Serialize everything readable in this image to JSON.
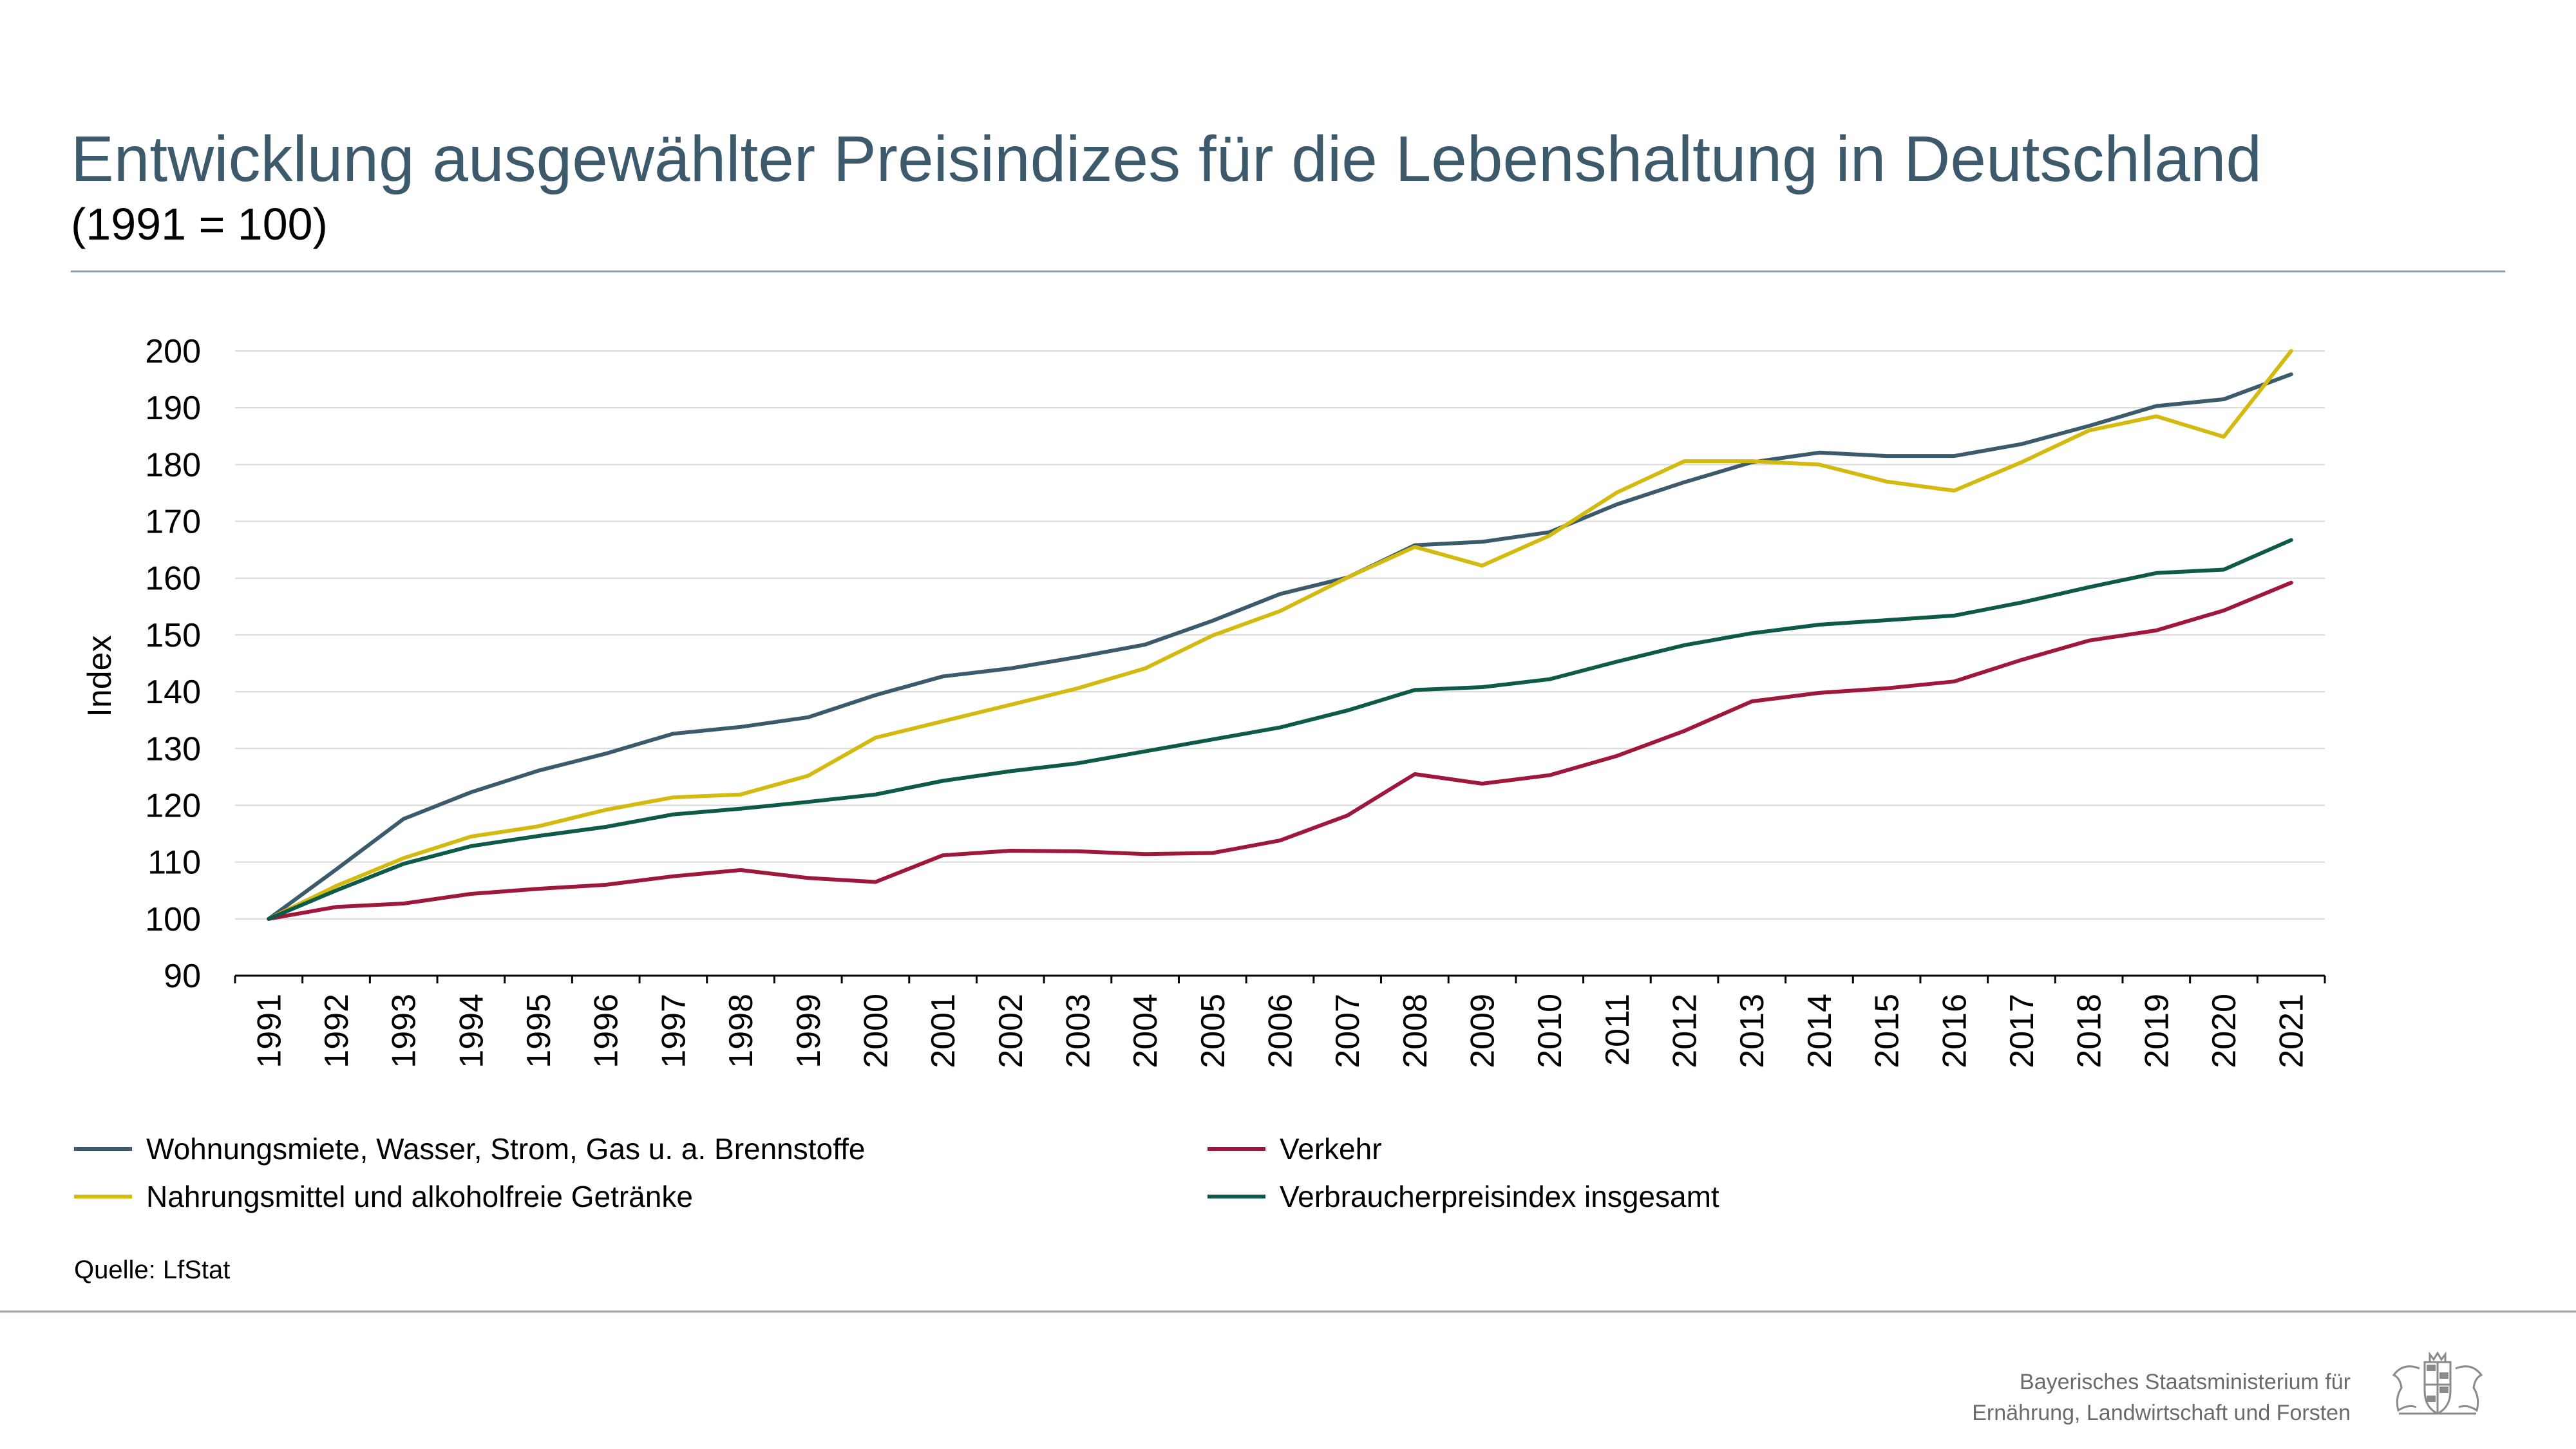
{
  "header": {
    "title": "Entwicklung ausgewählter Preisindizes für die Lebenshaltung in Deutschland",
    "subtitle": "(1991 = 100)"
  },
  "chart_data": {
    "type": "line",
    "ylabel": "Index",
    "ylim": [
      90,
      200
    ],
    "yticks": [
      90,
      100,
      110,
      120,
      130,
      140,
      150,
      160,
      170,
      180,
      190,
      200
    ],
    "grid": true,
    "legend_position": "bottom",
    "categories": [
      "1991",
      "1992",
      "1993",
      "1994",
      "1995",
      "1996",
      "1997",
      "1998",
      "1999",
      "2000",
      "2001",
      "2002",
      "2003",
      "2004",
      "2005",
      "2006",
      "2007",
      "2008",
      "2009",
      "2010",
      "2011",
      "2012",
      "2013",
      "2014",
      "2015",
      "2016",
      "2017",
      "2018",
      "2019",
      "2020",
      "2021"
    ],
    "series": [
      {
        "name": "Wohnungsmiete, Wasser, Strom, Gas u. a. Brennstoffe",
        "color": "#3d5a6c",
        "values": [
          100,
          108.7,
          117.6,
          122.3,
          126.1,
          129.1,
          132.6,
          133.8,
          135.5,
          139.4,
          142.7,
          144.1,
          146.1,
          148.3,
          152.5,
          157.2,
          160.1,
          165.8,
          166.4,
          168.1,
          173.0,
          176.9,
          180.4,
          182.1,
          181.5,
          181.5,
          183.6,
          186.8,
          190.3,
          191.5,
          195.9
        ]
      },
      {
        "name": "Nahrungsmittel und alkoholfreie Getränke",
        "color": "#d4b90f",
        "values": [
          100,
          105.8,
          110.7,
          114.5,
          116.3,
          119.2,
          121.4,
          121.9,
          125.2,
          131.9,
          134.8,
          137.7,
          140.6,
          144.1,
          149.9,
          154.2,
          160.1,
          165.5,
          162.2,
          167.5,
          175.1,
          180.6,
          180.6,
          180.0,
          177.0,
          175.4,
          180.4,
          186.0,
          188.5,
          184.9,
          200.0
        ]
      },
      {
        "name": "Verkehr",
        "color": "#a0173c",
        "values": [
          100,
          102.1,
          102.7,
          104.4,
          105.3,
          106.0,
          107.5,
          108.6,
          107.2,
          106.5,
          111.2,
          112.0,
          111.9,
          111.4,
          111.6,
          113.8,
          118.2,
          125.5,
          123.8,
          125.3,
          128.7,
          133.1,
          138.3,
          139.8,
          140.6,
          141.8,
          145.6,
          149.0,
          150.8,
          154.3,
          159.2
        ]
      },
      {
        "name": "Verbraucherpreisindex insgesamt",
        "color": "#0e5a48",
        "values": [
          100,
          105.0,
          109.7,
          112.8,
          114.6,
          116.2,
          118.4,
          119.4,
          120.6,
          121.9,
          124.3,
          126.0,
          127.4,
          129.5,
          131.6,
          133.7,
          136.7,
          140.3,
          140.8,
          142.2,
          145.3,
          148.2,
          150.3,
          151.8,
          152.6,
          153.4,
          155.7,
          158.4,
          160.9,
          161.5,
          166.7
        ]
      }
    ]
  },
  "legend": {
    "items": [
      {
        "label": "Wohnungsmiete, Wasser, Strom, Gas u. a. Brennstoffe",
        "color": "#3d5a6c"
      },
      {
        "label": "Verkehr",
        "color": "#a0173c"
      },
      {
        "label": "Nahrungsmittel und alkoholfreie Getränke",
        "color": "#d4b90f"
      },
      {
        "label": "Verbraucherpreisindex insgesamt",
        "color": "#0e5a48"
      }
    ]
  },
  "source": "Quelle: LfStat",
  "footer": {
    "line1": "Bayerisches Staatsministerium für",
    "line2": "Ernährung, Landwirtschaft und Forsten",
    "crest_icon": "bavarian-coat-of-arms-icon"
  }
}
